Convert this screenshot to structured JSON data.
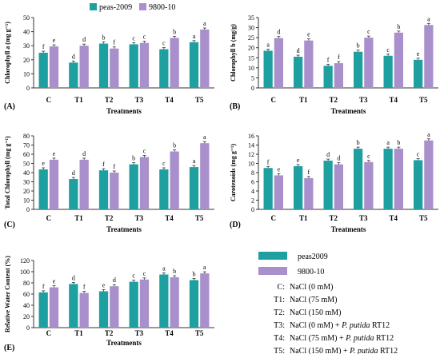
{
  "legend_top": {
    "series": [
      {
        "label": "peas-2009",
        "color": "#1FA0A0"
      },
      {
        "label": "9800-10",
        "color": "#A98FCB"
      }
    ]
  },
  "chart_data": [
    {
      "type": "bar",
      "panel": "(A)",
      "ylabel": "Chlorophyll a (mg g⁻¹)",
      "xlabel": "Treatments",
      "categories": [
        "C",
        "T1",
        "T2",
        "T3",
        "T4",
        "T5"
      ],
      "ylim": [
        0,
        50
      ],
      "yticks": [
        0,
        10,
        20,
        30,
        40,
        50
      ],
      "series": [
        {
          "name": "peas-2009",
          "values": [
            25,
            18,
            31.5,
            31,
            27.5,
            32.5
          ],
          "letters": [
            "f",
            "d",
            "b",
            "c",
            "c",
            "a"
          ]
        },
        {
          "name": "9800-10",
          "values": [
            29.5,
            30,
            28,
            32,
            35.5,
            41.5
          ],
          "letters": [
            "e",
            "d",
            "f",
            "c",
            "b",
            "a"
          ]
        }
      ]
    },
    {
      "type": "bar",
      "panel": "(B)",
      "ylabel": "Chlorophyll b (mg/g)",
      "xlabel": "Treatments",
      "categories": [
        "C",
        "T1",
        "T2",
        "T3",
        "T4",
        "T5"
      ],
      "ylim": [
        0,
        35
      ],
      "yticks": [
        0,
        5,
        10,
        15,
        20,
        25,
        30,
        35
      ],
      "series": [
        {
          "name": "peas-2009",
          "values": [
            18.5,
            15.5,
            11,
            18,
            16,
            14
          ],
          "letters": [
            "a",
            "d",
            "f",
            "b",
            "c",
            "e"
          ]
        },
        {
          "name": "9800-10",
          "values": [
            24.8,
            23.6,
            12.3,
            25,
            27.5,
            31.3
          ],
          "letters": [
            "d",
            "e",
            "f",
            "c",
            "b",
            "a"
          ]
        }
      ]
    },
    {
      "type": "bar",
      "panel": "(C)",
      "ylabel": "Total Chlorophyll (mg g⁻¹)",
      "xlabel": "Treatments",
      "categories": [
        "C",
        "T1",
        "T2",
        "T3",
        "T4",
        "T5"
      ],
      "ylim": [
        0,
        80
      ],
      "yticks": [
        0,
        10,
        20,
        30,
        40,
        50,
        60,
        70,
        80
      ],
      "series": [
        {
          "name": "peas-2009",
          "values": [
            43.5,
            33,
            42.5,
            49,
            43.5,
            46
          ],
          "letters": [
            "e",
            "d",
            "f",
            "b",
            "c",
            "a"
          ]
        },
        {
          "name": "9800-10",
          "values": [
            54,
            54,
            40,
            57,
            63,
            72
          ],
          "letters": [
            "e",
            "d",
            "f",
            "c",
            "b",
            "a"
          ]
        }
      ]
    },
    {
      "type": "bar",
      "panel": "(D)",
      "ylabel": "Carotenoids (mg g⁻¹)",
      "xlabel": "Treatments",
      "categories": [
        "C",
        "T1",
        "T2",
        "T3",
        "T4",
        "T5"
      ],
      "ylim": [
        0,
        16
      ],
      "yticks": [
        0,
        2,
        4,
        6,
        8,
        10,
        12,
        14,
        16
      ],
      "series": [
        {
          "name": "peas-2009",
          "values": [
            9,
            9.4,
            10.6,
            13.2,
            13.2,
            10.7
          ],
          "letters": [
            "f",
            "e",
            "d",
            "b",
            "a",
            "c"
          ]
        },
        {
          "name": "9800-10",
          "values": [
            7.4,
            6.8,
            9.8,
            10.3,
            13.2,
            15
          ],
          "letters": [
            "e",
            "f",
            "d",
            "c",
            "b",
            "a"
          ]
        }
      ]
    },
    {
      "type": "bar",
      "panel": "(E)",
      "ylabel": "Relative Water Content (%)",
      "xlabel": "Treatments",
      "categories": [
        "C",
        "T1",
        "T2",
        "T3",
        "T4",
        "T5"
      ],
      "ylim": [
        0,
        120
      ],
      "yticks": [
        0,
        20,
        40,
        60,
        80,
        100,
        120
      ],
      "series": [
        {
          "name": "peas-2009",
          "values": [
            63,
            78,
            65,
            82,
            95,
            85
          ],
          "letters": [
            "f",
            "d",
            "e",
            "c",
            "a",
            "b"
          ]
        },
        {
          "name": "9800-10",
          "values": [
            72,
            62,
            74,
            86,
            90,
            97
          ],
          "letters": [
            "e",
            "f",
            "d",
            "c",
            "b",
            "a"
          ]
        }
      ]
    }
  ],
  "key": {
    "series": [
      {
        "label": "peas2009",
        "color": "#1FA0A0"
      },
      {
        "label": "9800-10",
        "color": "#A98FCB"
      }
    ],
    "treatments": [
      {
        "code": "C:",
        "text": "NaCl (0 mM)"
      },
      {
        "code": "T1:",
        "text": "NaCl (75 mM)"
      },
      {
        "code": "T2:",
        "text": "NaCl (150 mM)"
      },
      {
        "code": "T3:",
        "text": "NaCl (0 mM) + ",
        "italic": "P. putida",
        "suffix": " RT12"
      },
      {
        "code": "T4:",
        "text": "NaCl (75 mM) + ",
        "italic": "P. putida",
        "suffix": " RT12"
      },
      {
        "code": "T5:",
        "text": "NaCl (150 mM) + ",
        "italic": "P. putida",
        "suffix": " RT12"
      }
    ]
  }
}
